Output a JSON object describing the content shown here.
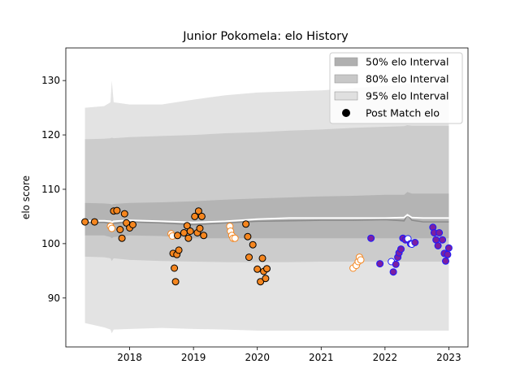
{
  "chart_data": {
    "type": "line",
    "title": "Junior Pokomela: elo History",
    "xlabel": "",
    "ylabel": "elo score",
    "xlim": [
      2017.0,
      2023.3
    ],
    "ylim": [
      81,
      136
    ],
    "x_ticks": [
      {
        "value": 2018,
        "label": "2018"
      },
      {
        "value": 2019,
        "label": "2019"
      },
      {
        "value": 2020,
        "label": "2020"
      },
      {
        "value": 2021,
        "label": "2021"
      },
      {
        "value": 2022,
        "label": "2022"
      },
      {
        "value": 2023,
        "label": "2023"
      }
    ],
    "y_ticks": [
      {
        "value": 90,
        "label": "90"
      },
      {
        "value": 100,
        "label": "100"
      },
      {
        "value": 110,
        "label": "110"
      },
      {
        "value": 120,
        "label": "120"
      },
      {
        "value": 130,
        "label": "130"
      }
    ],
    "legend": {
      "position": "top-right",
      "entries": [
        {
          "label": "50% elo Interval",
          "kind": "patch",
          "color": "#b0b0b0"
        },
        {
          "label": "80% elo Interval",
          "kind": "patch",
          "color": "#c8c8c8"
        },
        {
          "label": "95% elo Interval",
          "kind": "patch",
          "color": "#e0e0e0"
        },
        {
          "label": "Post Match elo",
          "kind": "marker",
          "color": "#000000"
        }
      ]
    },
    "colors": {
      "band95": "#e3e3e3",
      "band80": "#cccccc",
      "band50": "#b4b4b4",
      "median": "#8a8a8a",
      "mean": "#ffffff",
      "fill_orange": "#f5861f",
      "fill_white": "#ffffff",
      "fill_purple": "#7b1fa2",
      "edge_black": "#000000",
      "edge_orange": "#f5861f",
      "edge_blue": "#1a1aff"
    },
    "bands": {
      "x": [
        2017.3,
        2017.6,
        2017.7,
        2017.72,
        2017.75,
        2018.0,
        2018.5,
        2019.0,
        2019.5,
        2020.0,
        2020.5,
        2021.0,
        2021.5,
        2022.0,
        2022.3,
        2022.35,
        2022.42,
        2022.6,
        2023.0
      ],
      "lo95": [
        85.4,
        84.6,
        84.2,
        83.5,
        84.2,
        84.3,
        84.5,
        84.3,
        84.2,
        84.0,
        84.0,
        84.0,
        84.0,
        84.0,
        84.0,
        84.0,
        84.0,
        84.0,
        84.0
      ],
      "hi95": [
        125.0,
        125.3,
        126.0,
        130.0,
        126.0,
        125.6,
        125.6,
        126.5,
        127.3,
        127.8,
        128.0,
        128.2,
        128.6,
        129.0,
        129.2,
        129.5,
        129.3,
        129.3,
        129.3
      ],
      "lo80": [
        97.6,
        97.5,
        97.3,
        96.8,
        97.3,
        97.0,
        96.8,
        96.7,
        96.6,
        96.6,
        96.6,
        96.7,
        96.7,
        96.7,
        96.7,
        96.7,
        96.7,
        96.7,
        96.7
      ],
      "hi80": [
        119.2,
        119.3,
        119.4,
        119.5,
        119.4,
        119.6,
        119.8,
        120.0,
        120.3,
        120.5,
        120.8,
        121.0,
        121.3,
        121.5,
        121.6,
        121.8,
        121.7,
        121.7,
        121.7
      ],
      "lo50": [
        101.5,
        101.5,
        101.2,
        101.0,
        101.2,
        101.5,
        101.4,
        101.0,
        101.0,
        101.0,
        101.0,
        101.0,
        101.0,
        101.0,
        101.0,
        101.0,
        101.0,
        101.0,
        101.0
      ],
      "hi50": [
        107.5,
        107.4,
        107.3,
        107.2,
        107.3,
        107.5,
        107.6,
        107.8,
        108.1,
        108.3,
        108.5,
        108.7,
        108.8,
        109.0,
        109.0,
        109.5,
        109.2,
        109.2,
        109.2
      ],
      "median": [
        103.9,
        103.9,
        103.7,
        103.4,
        103.7,
        104.0,
        103.8,
        103.5,
        103.8,
        104.1,
        104.2,
        104.3,
        104.3,
        104.4,
        104.2,
        105.3,
        104.3,
        104.0,
        104.0
      ],
      "mean": [
        104.2,
        104.2,
        104.1,
        103.9,
        104.1,
        104.3,
        104.1,
        103.9,
        104.1,
        104.5,
        104.7,
        104.7,
        104.7,
        104.7,
        104.8,
        105.3,
        104.8,
        104.7,
        104.7
      ]
    },
    "points": [
      {
        "x": 2017.3,
        "y": 104.0,
        "fill": "fill_orange",
        "edge": "edge_black"
      },
      {
        "x": 2017.45,
        "y": 104.0,
        "fill": "fill_orange",
        "edge": "edge_black"
      },
      {
        "x": 2017.7,
        "y": 103.2,
        "fill": "fill_white",
        "edge": "edge_orange"
      },
      {
        "x": 2017.72,
        "y": 102.8,
        "fill": "fill_white",
        "edge": "edge_orange"
      },
      {
        "x": 2017.75,
        "y": 106.0,
        "fill": "fill_orange",
        "edge": "edge_black"
      },
      {
        "x": 2017.8,
        "y": 106.1,
        "fill": "fill_orange",
        "edge": "edge_black"
      },
      {
        "x": 2017.85,
        "y": 102.6,
        "fill": "fill_orange",
        "edge": "edge_black"
      },
      {
        "x": 2017.88,
        "y": 101.0,
        "fill": "fill_orange",
        "edge": "edge_black"
      },
      {
        "x": 2017.92,
        "y": 105.5,
        "fill": "fill_orange",
        "edge": "edge_black"
      },
      {
        "x": 2017.95,
        "y": 103.8,
        "fill": "fill_orange",
        "edge": "edge_black"
      },
      {
        "x": 2018.0,
        "y": 102.9,
        "fill": "fill_orange",
        "edge": "edge_black"
      },
      {
        "x": 2018.05,
        "y": 103.5,
        "fill": "fill_orange",
        "edge": "edge_black"
      },
      {
        "x": 2018.65,
        "y": 101.8,
        "fill": "fill_white",
        "edge": "edge_orange"
      },
      {
        "x": 2018.67,
        "y": 101.4,
        "fill": "fill_white",
        "edge": "edge_orange"
      },
      {
        "x": 2018.68,
        "y": 98.2,
        "fill": "fill_orange",
        "edge": "edge_black"
      },
      {
        "x": 2018.7,
        "y": 95.5,
        "fill": "fill_orange",
        "edge": "edge_black"
      },
      {
        "x": 2018.72,
        "y": 93.0,
        "fill": "fill_orange",
        "edge": "edge_black"
      },
      {
        "x": 2018.74,
        "y": 98.0,
        "fill": "fill_orange",
        "edge": "edge_black"
      },
      {
        "x": 2018.77,
        "y": 98.8,
        "fill": "fill_orange",
        "edge": "edge_black"
      },
      {
        "x": 2018.75,
        "y": 101.5,
        "fill": "fill_orange",
        "edge": "edge_black"
      },
      {
        "x": 2018.85,
        "y": 102.0,
        "fill": "fill_orange",
        "edge": "edge_black"
      },
      {
        "x": 2018.9,
        "y": 103.3,
        "fill": "fill_orange",
        "edge": "edge_black"
      },
      {
        "x": 2018.92,
        "y": 101.0,
        "fill": "fill_orange",
        "edge": "edge_black"
      },
      {
        "x": 2018.95,
        "y": 102.3,
        "fill": "fill_orange",
        "edge": "edge_black"
      },
      {
        "x": 2019.02,
        "y": 105.0,
        "fill": "fill_orange",
        "edge": "edge_black"
      },
      {
        "x": 2019.06,
        "y": 102.0,
        "fill": "fill_orange",
        "edge": "edge_black"
      },
      {
        "x": 2019.08,
        "y": 106.0,
        "fill": "fill_orange",
        "edge": "edge_black"
      },
      {
        "x": 2019.1,
        "y": 102.8,
        "fill": "fill_orange",
        "edge": "edge_black"
      },
      {
        "x": 2019.13,
        "y": 105.0,
        "fill": "fill_orange",
        "edge": "edge_black"
      },
      {
        "x": 2019.16,
        "y": 101.5,
        "fill": "fill_orange",
        "edge": "edge_black"
      },
      {
        "x": 2019.57,
        "y": 103.2,
        "fill": "fill_white",
        "edge": "edge_orange"
      },
      {
        "x": 2019.58,
        "y": 102.3,
        "fill": "fill_white",
        "edge": "edge_orange"
      },
      {
        "x": 2019.6,
        "y": 101.5,
        "fill": "fill_white",
        "edge": "edge_orange"
      },
      {
        "x": 2019.62,
        "y": 101.0,
        "fill": "fill_white",
        "edge": "edge_orange"
      },
      {
        "x": 2019.65,
        "y": 101.0,
        "fill": "fill_white",
        "edge": "edge_orange"
      },
      {
        "x": 2019.82,
        "y": 103.6,
        "fill": "fill_orange",
        "edge": "edge_black"
      },
      {
        "x": 2019.85,
        "y": 101.3,
        "fill": "fill_orange",
        "edge": "edge_black"
      },
      {
        "x": 2019.87,
        "y": 97.5,
        "fill": "fill_orange",
        "edge": "edge_black"
      },
      {
        "x": 2019.93,
        "y": 99.8,
        "fill": "fill_orange",
        "edge": "edge_black"
      },
      {
        "x": 2020.0,
        "y": 95.3,
        "fill": "fill_orange",
        "edge": "edge_black"
      },
      {
        "x": 2020.05,
        "y": 93.0,
        "fill": "fill_orange",
        "edge": "edge_black"
      },
      {
        "x": 2020.08,
        "y": 97.3,
        "fill": "fill_orange",
        "edge": "edge_black"
      },
      {
        "x": 2020.1,
        "y": 94.9,
        "fill": "fill_orange",
        "edge": "edge_black"
      },
      {
        "x": 2020.13,
        "y": 93.6,
        "fill": "fill_orange",
        "edge": "edge_black"
      },
      {
        "x": 2020.15,
        "y": 95.4,
        "fill": "fill_orange",
        "edge": "edge_black"
      },
      {
        "x": 2021.5,
        "y": 95.5,
        "fill": "fill_white",
        "edge": "edge_orange"
      },
      {
        "x": 2021.55,
        "y": 96.0,
        "fill": "fill_white",
        "edge": "edge_orange"
      },
      {
        "x": 2021.58,
        "y": 96.7,
        "fill": "fill_white",
        "edge": "edge_orange"
      },
      {
        "x": 2021.6,
        "y": 97.5,
        "fill": "fill_white",
        "edge": "edge_orange"
      },
      {
        "x": 2021.62,
        "y": 97.0,
        "fill": "fill_white",
        "edge": "edge_orange"
      },
      {
        "x": 2021.78,
        "y": 101.0,
        "fill": "fill_purple",
        "edge": "edge_blue"
      },
      {
        "x": 2021.92,
        "y": 96.3,
        "fill": "fill_purple",
        "edge": "edge_blue"
      },
      {
        "x": 2022.1,
        "y": 96.7,
        "fill": "fill_white",
        "edge": "edge_blue"
      },
      {
        "x": 2022.13,
        "y": 94.8,
        "fill": "fill_purple",
        "edge": "edge_blue"
      },
      {
        "x": 2022.17,
        "y": 96.2,
        "fill": "fill_purple",
        "edge": "edge_blue"
      },
      {
        "x": 2022.2,
        "y": 97.5,
        "fill": "fill_purple",
        "edge": "edge_blue"
      },
      {
        "x": 2022.22,
        "y": 98.3,
        "fill": "fill_purple",
        "edge": "edge_blue"
      },
      {
        "x": 2022.25,
        "y": 99.0,
        "fill": "fill_purple",
        "edge": "edge_blue"
      },
      {
        "x": 2022.28,
        "y": 101.0,
        "fill": "fill_purple",
        "edge": "edge_blue"
      },
      {
        "x": 2022.32,
        "y": 100.7,
        "fill": "fill_purple",
        "edge": "edge_blue"
      },
      {
        "x": 2022.36,
        "y": 100.9,
        "fill": "fill_white",
        "edge": "edge_blue"
      },
      {
        "x": 2022.4,
        "y": 100.0,
        "fill": "fill_purple",
        "edge": "edge_blue"
      },
      {
        "x": 2022.42,
        "y": 99.9,
        "fill": "fill_white",
        "edge": "edge_blue"
      },
      {
        "x": 2022.47,
        "y": 100.2,
        "fill": "fill_purple",
        "edge": "edge_blue"
      },
      {
        "x": 2022.75,
        "y": 103.0,
        "fill": "fill_purple",
        "edge": "edge_blue"
      },
      {
        "x": 2022.77,
        "y": 102.0,
        "fill": "fill_purple",
        "edge": "edge_blue"
      },
      {
        "x": 2022.8,
        "y": 100.7,
        "fill": "fill_purple",
        "edge": "edge_blue"
      },
      {
        "x": 2022.83,
        "y": 99.6,
        "fill": "fill_purple",
        "edge": "edge_blue"
      },
      {
        "x": 2022.85,
        "y": 102.0,
        "fill": "fill_purple",
        "edge": "edge_blue"
      },
      {
        "x": 2022.9,
        "y": 100.7,
        "fill": "fill_purple",
        "edge": "edge_blue"
      },
      {
        "x": 2022.93,
        "y": 98.2,
        "fill": "fill_purple",
        "edge": "edge_blue"
      },
      {
        "x": 2022.95,
        "y": 96.8,
        "fill": "fill_purple",
        "edge": "edge_blue"
      },
      {
        "x": 2022.98,
        "y": 98.0,
        "fill": "fill_purple",
        "edge": "edge_blue"
      },
      {
        "x": 2023.0,
        "y": 99.2,
        "fill": "fill_purple",
        "edge": "edge_blue"
      }
    ]
  }
}
